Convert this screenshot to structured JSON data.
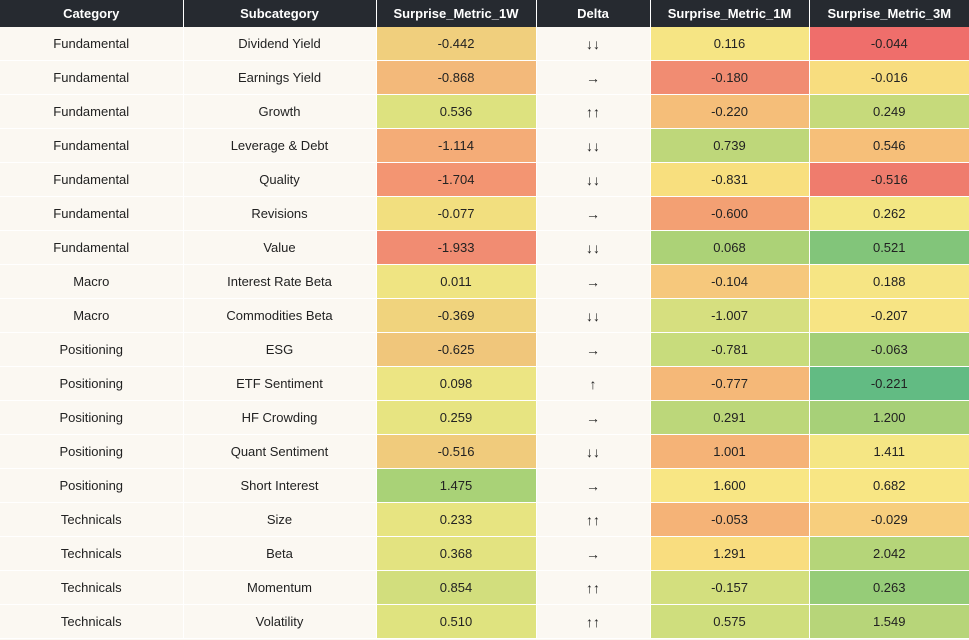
{
  "chart_data": {
    "type": "table",
    "columns": [
      "Category",
      "Subcategory",
      "Surprise_Metric_1W",
      "Delta",
      "Surprise_Metric_1M",
      "Surprise_Metric_3M"
    ],
    "rows": [
      {
        "category": "Fundamental",
        "subcategory": "Dividend Yield",
        "m1w": "-0.442",
        "delta": "↓↓",
        "m1m": "0.116",
        "m3m": "-0.044",
        "c1w": "#f0cf7d",
        "c1m": "#f6e584",
        "c3m": "#ef6e6b"
      },
      {
        "category": "Fundamental",
        "subcategory": "Earnings Yield",
        "m1w": "-0.868",
        "delta": "→",
        "m1m": "-0.180",
        "m3m": "-0.016",
        "c1w": "#f3b97a",
        "c1m": "#f18c72",
        "c3m": "#f8dd7f"
      },
      {
        "category": "Fundamental",
        "subcategory": "Growth",
        "m1w": "0.536",
        "delta": "↑↑",
        "m1m": "-0.220",
        "m3m": "0.249",
        "c1w": "#dde27f",
        "c1m": "#f5be79",
        "c3m": "#c6da7b"
      },
      {
        "category": "Fundamental",
        "subcategory": "Leverage & Debt",
        "m1w": "-1.114",
        "delta": "↓↓",
        "m1m": "0.739",
        "m3m": "0.546",
        "c1w": "#f4ac77",
        "c1m": "#bed77a",
        "c3m": "#f6bf79"
      },
      {
        "category": "Fundamental",
        "subcategory": "Quality",
        "m1w": "-1.704",
        "delta": "↓↓",
        "m1m": "-0.831",
        "m3m": "-0.516",
        "c1w": "#f39572",
        "c1m": "#f8df7e",
        "c3m": "#ef7c6d"
      },
      {
        "category": "Fundamental",
        "subcategory": "Revisions",
        "m1w": "-0.077",
        "delta": "→",
        "m1m": "-0.600",
        "m3m": "0.262",
        "c1w": "#f2df7f",
        "c1m": "#f3a073",
        "c3m": "#f3e783"
      },
      {
        "category": "Fundamental",
        "subcategory": "Value",
        "m1w": "-1.933",
        "delta": "↓↓",
        "m1m": "0.068",
        "m3m": "0.521",
        "c1w": "#f18c72",
        "c1m": "#acd277",
        "c3m": "#82c57a"
      },
      {
        "category": "Macro",
        "subcategory": "Interest Rate Beta",
        "m1w": "0.011",
        "delta": "→",
        "m1m": "-0.104",
        "m3m": "0.188",
        "c1w": "#efe482",
        "c1m": "#f6c87c",
        "c3m": "#f6e584"
      },
      {
        "category": "Macro",
        "subcategory": "Commodities Beta",
        "m1w": "-0.369",
        "delta": "↓↓",
        "m1m": "-1.007",
        "m3m": "-0.207",
        "c1w": "#f0d37d",
        "c1m": "#d6df7f",
        "c3m": "#f7e484"
      },
      {
        "category": "Positioning",
        "subcategory": "ESG",
        "m1w": "-0.625",
        "delta": "→",
        "m1m": "-0.781",
        "m3m": "-0.063",
        "c1w": "#f0c67b",
        "c1m": "#c8dc7c",
        "c3m": "#a3cf78"
      },
      {
        "category": "Positioning",
        "subcategory": "ETF Sentiment",
        "m1w": "0.098",
        "delta": "↑",
        "m1m": "-0.777",
        "m3m": "-0.221",
        "c1w": "#ece583",
        "c1m": "#f5b878",
        "c3m": "#62bb83"
      },
      {
        "category": "Positioning",
        "subcategory": "HF Crowding",
        "m1w": "0.259",
        "delta": "→",
        "m1m": "0.291",
        "m3m": "1.200",
        "c1w": "#e7e481",
        "c1m": "#bcd77a",
        "c3m": "#a7d078"
      },
      {
        "category": "Positioning",
        "subcategory": "Quant Sentiment",
        "m1w": "-0.516",
        "delta": "↓↓",
        "m1m": "1.001",
        "m3m": "1.411",
        "c1w": "#f0cb7c",
        "c1m": "#f5b377",
        "c3m": "#f5e684"
      },
      {
        "category": "Positioning",
        "subcategory": "Short Interest",
        "m1w": "1.475",
        "delta": "→",
        "m1m": "1.600",
        "m3m": "0.682",
        "c1w": "#a9d277",
        "c1m": "#f8e684",
        "c3m": "#f8e684"
      },
      {
        "category": "Technicals",
        "subcategory": "Size",
        "m1w": "0.233",
        "delta": "↑↑",
        "m1m": "-0.053",
        "m3m": "-0.029",
        "c1w": "#e7e481",
        "c1m": "#f5b377",
        "c3m": "#f7ce7d"
      },
      {
        "category": "Technicals",
        "subcategory": "Beta",
        "m1w": "0.368",
        "delta": "→",
        "m1m": "1.291",
        "m3m": "2.042",
        "c1w": "#e3e380",
        "c1m": "#f9dd7f",
        "c3m": "#b5d579"
      },
      {
        "category": "Technicals",
        "subcategory": "Momentum",
        "m1w": "0.854",
        "delta": "↑↑",
        "m1m": "-0.157",
        "m3m": "0.263",
        "c1w": "#d2de7d",
        "c1m": "#d3df7e",
        "c3m": "#96cc78"
      },
      {
        "category": "Technicals",
        "subcategory": "Volatility",
        "m1w": "0.510",
        "delta": "↑↑",
        "m1m": "0.575",
        "m3m": "1.549",
        "c1w": "#dfe37f",
        "c1m": "#cfde7d",
        "c3m": "#b7d579"
      }
    ]
  }
}
